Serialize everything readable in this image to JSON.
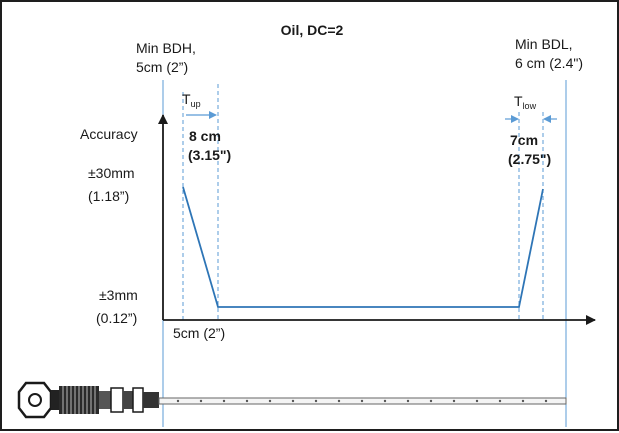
{
  "title": "Oil, DC=2",
  "top_left_label": {
    "line1": "Min BDH,",
    "line2": "5cm (2”)"
  },
  "top_right_label": {
    "line1": "Min BDL,",
    "line2": "6 cm (2.4\")"
  },
  "t_up": {
    "symbol": "T",
    "subscript": "up",
    "value_line1": "8 cm",
    "value_line2": "(3.15\")"
  },
  "t_low": {
    "symbol": "T",
    "subscript": "low",
    "value_line1": "7cm",
    "value_line2": "(2.75\")"
  },
  "y_axis_label": "Accuracy",
  "y_high": {
    "line1": "±30mm",
    "line2": "(1.18”)"
  },
  "y_low": {
    "line1": "±3mm",
    "line2": "(0.12”)"
  },
  "x_marker": "5cm (2”)",
  "colors": {
    "line": "#2e75b6",
    "guide": "#5b9bd5",
    "axis": "#1a1a1a",
    "probe": "#555555"
  },
  "icons": {
    "transmitter": "transmitter-head-icon"
  }
}
